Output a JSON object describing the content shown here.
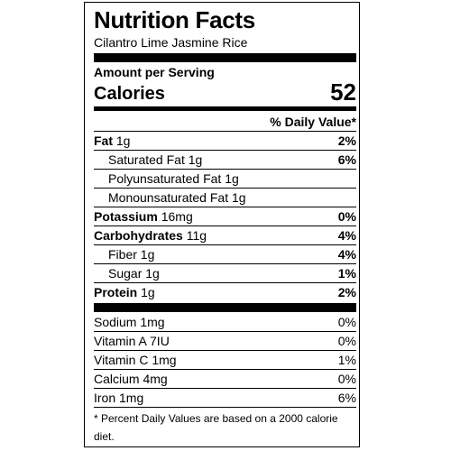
{
  "label": {
    "title": "Nutrition Facts",
    "subtitle": "Cilantro Lime Jasmine Rice",
    "amount_per_serving": "Amount per Serving",
    "calories_label": "Calories",
    "calories_value": "52",
    "dv_header": "% Daily Value*",
    "nutrients": [
      {
        "name": "Fat",
        "amount": "1g",
        "pct": "2%"
      },
      {
        "name": "Saturated Fat",
        "amount": "1g",
        "pct": "6%"
      },
      {
        "name": "Polyunsaturated Fat",
        "amount": "1g",
        "pct": ""
      },
      {
        "name": "Monounsaturated Fat",
        "amount": "1g",
        "pct": ""
      },
      {
        "name": "Potassium",
        "amount": "16mg",
        "pct": "0%"
      },
      {
        "name": "Carbohydrates",
        "amount": "11g",
        "pct": "4%"
      },
      {
        "name": "Fiber",
        "amount": "1g",
        "pct": "4%"
      },
      {
        "name": "Sugar",
        "amount": "1g",
        "pct": "1%"
      },
      {
        "name": "Protein",
        "amount": "1g",
        "pct": "2%"
      }
    ],
    "vitamins": [
      {
        "name": "Sodium",
        "amount": "1mg",
        "pct": "0%"
      },
      {
        "name": "Vitamin A",
        "amount": "7IU",
        "pct": "0%"
      },
      {
        "name": "Vitamin C",
        "amount": "1mg",
        "pct": "1%"
      },
      {
        "name": "Calcium",
        "amount": "4mg",
        "pct": "0%"
      },
      {
        "name": "Iron",
        "amount": "1mg",
        "pct": "6%"
      }
    ],
    "footnote": "* Percent Daily Values are based on a 2000 calorie diet."
  }
}
